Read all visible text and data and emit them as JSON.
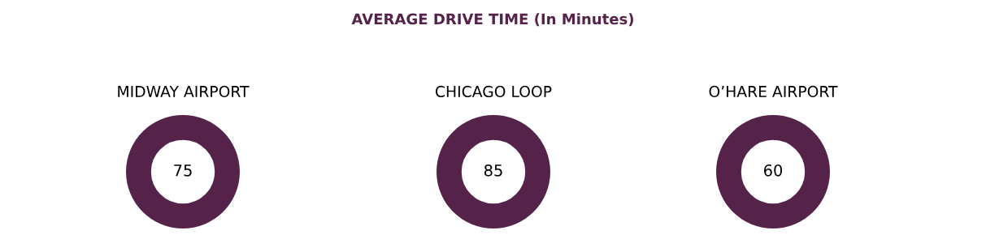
{
  "chart_data": [
    {
      "type": "other",
      "title": "AVERAGE DRIVE TIME (In Minutes)"
    },
    {
      "type": "donut",
      "title": "MIDWAY AIRPORT",
      "categories": [
        null
      ],
      "values": [
        75
      ],
      "colors": [
        "#55234a"
      ],
      "data_labels": true
    },
    {
      "type": "donut",
      "title": "CHICAGO LOOP",
      "categories": [
        null
      ],
      "values": [
        85
      ],
      "colors": [
        "#55234a"
      ],
      "data_labels": true
    },
    {
      "type": "donut",
      "title": "O’HARE AIRPORT",
      "categories": [
        null
      ],
      "values": [
        60
      ],
      "colors": [
        "#55234a"
      ],
      "data_labels": true
    }
  ]
}
